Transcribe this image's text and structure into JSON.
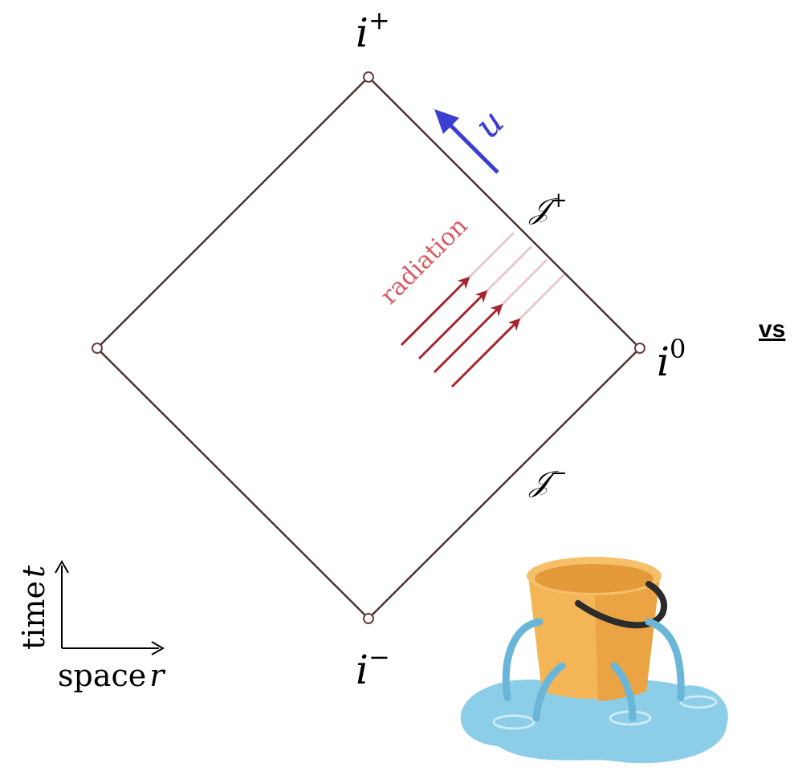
{
  "vertices": {
    "top": {
      "label": "i",
      "sup": "+"
    },
    "right": {
      "label": "i",
      "sup": "0"
    },
    "bottom": {
      "label": "i",
      "sup": "−"
    }
  },
  "scri": {
    "plus": {
      "label": "𝒥",
      "sup": "+"
    },
    "minus": {
      "label": "𝒥",
      "sup": "−"
    }
  },
  "u_label": "u",
  "radiation_label": "radiation",
  "vs": "vs",
  "axes": {
    "time": "time",
    "t": "t",
    "space": "space",
    "r": "r"
  }
}
